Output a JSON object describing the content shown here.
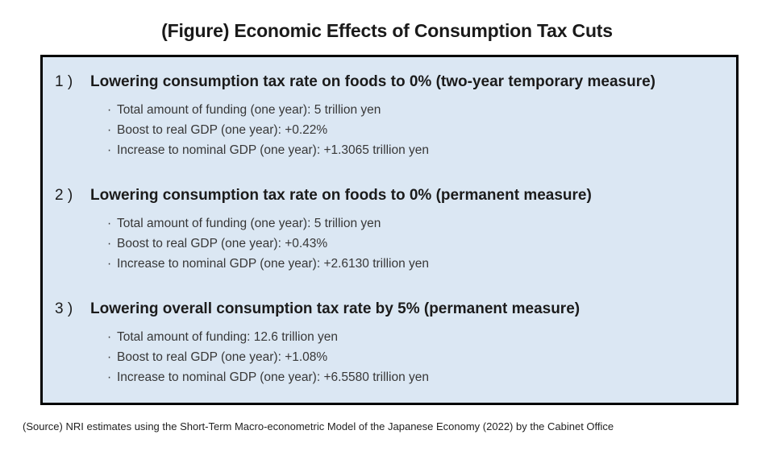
{
  "title": "(Figure) Economic Effects of Consumption Tax Cuts",
  "panel": {
    "background_color": "#dbe7f3",
    "border_color": "#000000",
    "bullet_char": "·",
    "sections": [
      {
        "number": "1 )",
        "heading": "Lowering consumption tax rate on foods to 0% (two-year temporary measure)",
        "bullets": [
          "Total amount of funding (one year): 5 trillion yen",
          "Boost to real GDP (one year): +0.22%",
          "Increase to nominal GDP (one year): +1.3065 trillion yen"
        ]
      },
      {
        "number": "2 )",
        "heading": "Lowering consumption tax rate on foods to 0% (permanent measure)",
        "bullets": [
          "Total amount of funding (one year): 5 trillion yen",
          "Boost to real GDP (one year): +0.43%",
          "Increase to nominal GDP (one year): +2.6130 trillion yen"
        ]
      },
      {
        "number": "3 )",
        "heading": "Lowering overall consumption tax rate by 5% (permanent measure)",
        "bullets": [
          "Total amount of funding: 12.6 trillion yen",
          "Boost to real GDP (one year): +1.08%",
          "Increase to nominal GDP (one year): +6.5580 trillion yen"
        ]
      }
    ]
  },
  "source": "(Source) NRI estimates using the Short-Term Macro-econometric Model of the Japanese Economy (2022) by the Cabinet Office"
}
